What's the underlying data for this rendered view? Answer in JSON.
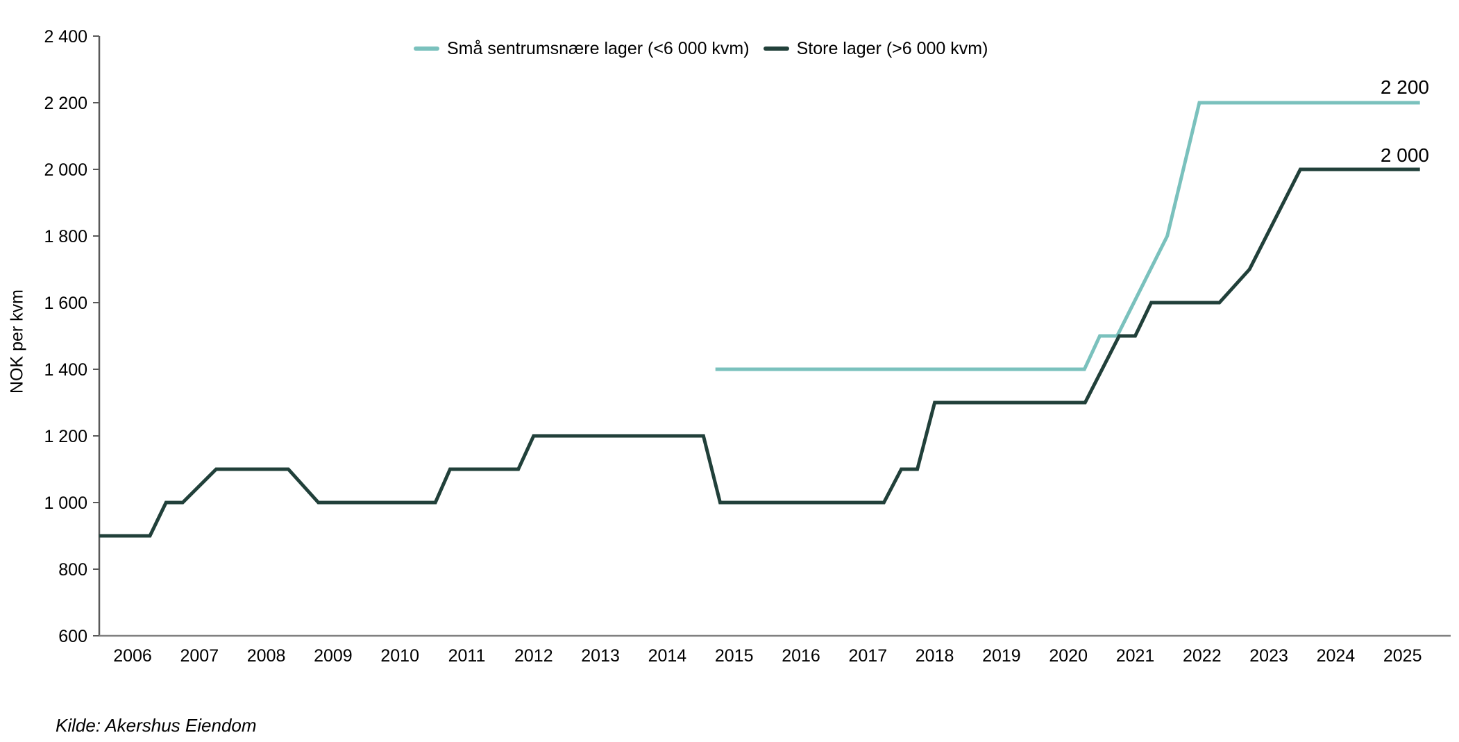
{
  "page": {
    "background": "#ffffff",
    "text_color": "#000000",
    "x_axis_color": "#808080",
    "y_axis_color": "#595959"
  },
  "y_axis_title": "NOK per kvm",
  "source_note": "Kilde: Akershus Eiendom",
  "legend": {
    "items": [
      {
        "label": "Små sentrumsnære lager (<6 000 kvm)",
        "color": "#7ac1bd"
      },
      {
        "label": "Store lager (>6 000 kvm)",
        "color": "#21403a"
      }
    ]
  },
  "end_labels": {
    "sma": "2 200",
    "store": "2 000"
  },
  "chart_data": {
    "type": "line",
    "title": "",
    "xlabel": "",
    "ylabel": "NOK per kvm",
    "xlim": [
      2005.5,
      2025.75
    ],
    "ylim": [
      600,
      2400
    ],
    "grid": false,
    "legend_position": "top-center",
    "y_ticks": [
      {
        "value": 600,
        "label": "600"
      },
      {
        "value": 800,
        "label": "800"
      },
      {
        "value": 1000,
        "label": "1 000"
      },
      {
        "value": 1200,
        "label": "1 200"
      },
      {
        "value": 1400,
        "label": "1 400"
      },
      {
        "value": 1600,
        "label": "1 600"
      },
      {
        "value": 1800,
        "label": "1 800"
      },
      {
        "value": 2000,
        "label": "2 000"
      },
      {
        "value": 2200,
        "label": "2 200"
      },
      {
        "value": 2400,
        "label": "2 400"
      }
    ],
    "x_ticks": [
      {
        "value": 2006,
        "label": "2006"
      },
      {
        "value": 2007,
        "label": "2007"
      },
      {
        "value": 2008,
        "label": "2008"
      },
      {
        "value": 2009,
        "label": "2009"
      },
      {
        "value": 2010,
        "label": "2010"
      },
      {
        "value": 2011,
        "label": "2011"
      },
      {
        "value": 2012,
        "label": "2012"
      },
      {
        "value": 2013,
        "label": "2013"
      },
      {
        "value": 2014,
        "label": "2014"
      },
      {
        "value": 2015,
        "label": "2015"
      },
      {
        "value": 2016,
        "label": "2016"
      },
      {
        "value": 2017,
        "label": "2017"
      },
      {
        "value": 2018,
        "label": "2018"
      },
      {
        "value": 2019,
        "label": "2019"
      },
      {
        "value": 2020,
        "label": "2020"
      },
      {
        "value": 2021,
        "label": "2021"
      },
      {
        "value": 2022,
        "label": "2022"
      },
      {
        "value": 2023,
        "label": "2023"
      },
      {
        "value": 2024,
        "label": "2024"
      },
      {
        "value": 2025,
        "label": "2025"
      }
    ],
    "series": [
      {
        "name": "Små sentrumsnære lager (<6 000 kvm)",
        "color": "#7ac1bd",
        "stroke_width": 5,
        "end_label": "2 200",
        "final_value": 2200,
        "points": [
          [
            2014.72,
            1400
          ],
          [
            2020.24,
            1400
          ],
          [
            2020.47,
            1500
          ],
          [
            2020.73,
            1500
          ],
          [
            2021.48,
            1800
          ],
          [
            2021.96,
            2200
          ],
          [
            2025.26,
            2200
          ]
        ]
      },
      {
        "name": "Store lager (>6 000 kvm)",
        "color": "#21403a",
        "stroke_width": 5,
        "end_label": "2 000",
        "final_value": 2000,
        "points": [
          [
            2005.5,
            900
          ],
          [
            2006.26,
            900
          ],
          [
            2006.5,
            1000
          ],
          [
            2006.75,
            1000
          ],
          [
            2007.25,
            1100
          ],
          [
            2008.33,
            1100
          ],
          [
            2008.78,
            1000
          ],
          [
            2010.53,
            1000
          ],
          [
            2010.75,
            1100
          ],
          [
            2011.77,
            1100
          ],
          [
            2012.0,
            1200
          ],
          [
            2014.54,
            1200
          ],
          [
            2014.79,
            1000
          ],
          [
            2017.24,
            1000
          ],
          [
            2017.5,
            1100
          ],
          [
            2017.74,
            1100
          ],
          [
            2018.0,
            1300
          ],
          [
            2020.25,
            1300
          ],
          [
            2020.76,
            1500
          ],
          [
            2021.0,
            1500
          ],
          [
            2021.24,
            1600
          ],
          [
            2022.26,
            1600
          ],
          [
            2022.71,
            1700
          ],
          [
            2023.47,
            2000
          ],
          [
            2025.26,
            2000
          ]
        ]
      }
    ],
    "source": "Kilde: Akershus Eiendom"
  }
}
